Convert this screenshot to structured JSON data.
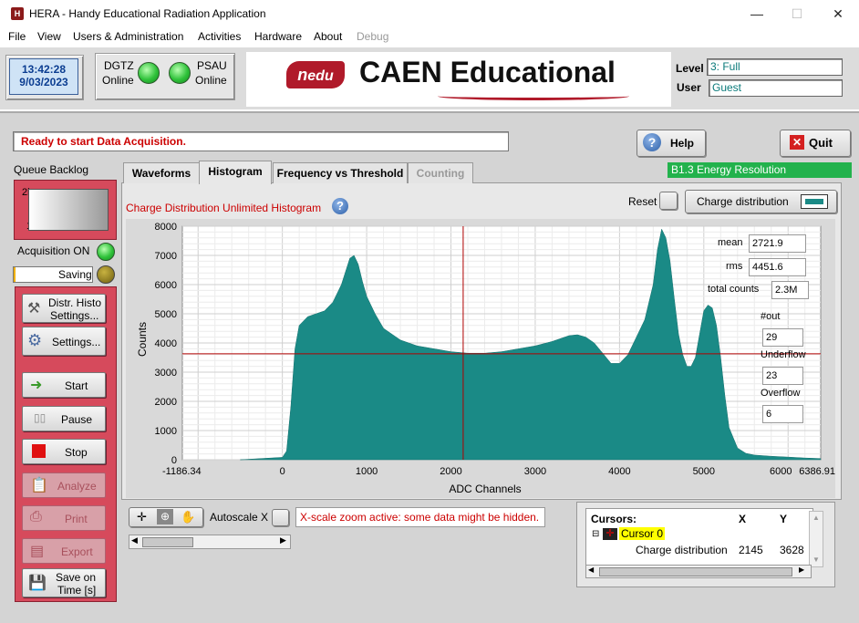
{
  "window": {
    "title": "HERA - Handy Educational Radiation Application",
    "app_icon": "hera-icon",
    "controls": [
      "—",
      "☐",
      "✕"
    ]
  },
  "menu": [
    "File",
    "View",
    "Users & Administration",
    "Activities",
    "Hardware",
    "About",
    "Debug"
  ],
  "header": {
    "time": "13:42:28",
    "date": "9/03/2023",
    "dgtz_label": "DGTZ",
    "dgtz_status": "Online",
    "psau_label": "PSAU",
    "psau_status": "Online",
    "logo_n": "n",
    "logo_edu": "edu",
    "logo_text": "CAEN Educational",
    "level_label": "Level",
    "level_value": "3: Full",
    "user_label": "User",
    "user_value": "Guest"
  },
  "status_message": "Ready to start Data Acquisition.",
  "help_label": "Help",
  "quit_label": "Quit",
  "energy_badge": "B1.3 Energy Resolution",
  "sidebar": {
    "queue_label": "Queue Backlog",
    "queue_max": "2k",
    "queue_min": "1",
    "acq_label": "Acquisition ON",
    "saving_label": "Saving",
    "buttons": {
      "distr_line1": "Distr. Histo",
      "distr_line2": "Settings...",
      "settings": "Settings...",
      "start": "Start",
      "pause": "Pause",
      "stop": "Stop",
      "analyze": "Analyze",
      "print": "Print",
      "export": "Export",
      "save_line1": "Save on",
      "save_line2": "Time [s]"
    }
  },
  "tabs": [
    "Waveforms",
    "Histogram",
    "Frequency vs Threshold",
    "Counting"
  ],
  "active_tab": "Histogram",
  "histogram": {
    "title": "Charge Distribution Unlimited Histogram",
    "reset_label": "Reset",
    "dist_button": "Charge distribution",
    "stats": {
      "mean_label": "mean",
      "mean_value": "2721.9",
      "rms_label": "rms",
      "rms_value": "4451.6",
      "total_label": "total counts",
      "total_value": "2.3M",
      "out_label": "#out",
      "out_value": "29",
      "underflow_label": "Underflow",
      "underflow_value": "23",
      "overflow_label": "Overflow",
      "overflow_value": "6"
    },
    "autoscale_label": "Autoscale X",
    "zoom_warning": "X-scale zoom active: some data might be hidden."
  },
  "chart_data": {
    "type": "area",
    "xlabel": "ADC Channels",
    "ylabel": "Counts",
    "xlim": [
      -1186.34,
      6386.91
    ],
    "ylim": [
      0,
      8000
    ],
    "x_ticks": [
      "-1186.34",
      "0",
      "1000",
      "2000",
      "3000",
      "4000",
      "5000",
      "6000",
      "6386.91"
    ],
    "y_ticks": [
      "8000",
      "7000",
      "6000",
      "5000",
      "4000",
      "3000",
      "2000",
      "1000",
      "0"
    ],
    "grid": true,
    "color": "#1a8a86",
    "cursor": {
      "x": 2145,
      "y": 3628
    },
    "x": [
      -500,
      0,
      50,
      100,
      150,
      200,
      300,
      400,
      500,
      600,
      700,
      800,
      850,
      900,
      950,
      1000,
      1100,
      1200,
      1400,
      1600,
      1800,
      2000,
      2200,
      2400,
      2600,
      2800,
      3000,
      3200,
      3400,
      3500,
      3600,
      3700,
      3800,
      3900,
      4000,
      4100,
      4200,
      4300,
      4400,
      4450,
      4500,
      4550,
      4600,
      4650,
      4700,
      4750,
      4800,
      4850,
      4900,
      4950,
      5000,
      5050,
      5100,
      5150,
      5200,
      5250,
      5300,
      5400,
      5500,
      5600,
      5800,
      6000,
      6200,
      6386.91
    ],
    "values": [
      0,
      80,
      300,
      1800,
      3800,
      4600,
      4900,
      5000,
      5100,
      5400,
      6000,
      6900,
      7000,
      6700,
      6100,
      5600,
      5000,
      4500,
      4100,
      3900,
      3800,
      3700,
      3650,
      3650,
      3700,
      3800,
      3900,
      4050,
      4250,
      4280,
      4200,
      4000,
      3650,
      3300,
      3300,
      3600,
      4200,
      4800,
      6000,
      7200,
      7900,
      7600,
      6800,
      5500,
      4300,
      3600,
      3200,
      3200,
      3500,
      4300,
      5100,
      5300,
      5200,
      4600,
      3500,
      2200,
      1100,
      400,
      220,
      160,
      120,
      90,
      60,
      40
    ]
  },
  "cursors": {
    "header": "Cursors:",
    "x_header": "X",
    "y_header": "Y",
    "name": "Cursor 0",
    "plot": "Charge distribution",
    "x": "2145",
    "y": "3628",
    "cursor_color": "#ffff00"
  },
  "icons": {
    "help": "question-circle-icon",
    "quit": "red-x-icon",
    "start": "green-arrow-icon",
    "stop": "red-square-icon",
    "pause": "pause-icon"
  }
}
